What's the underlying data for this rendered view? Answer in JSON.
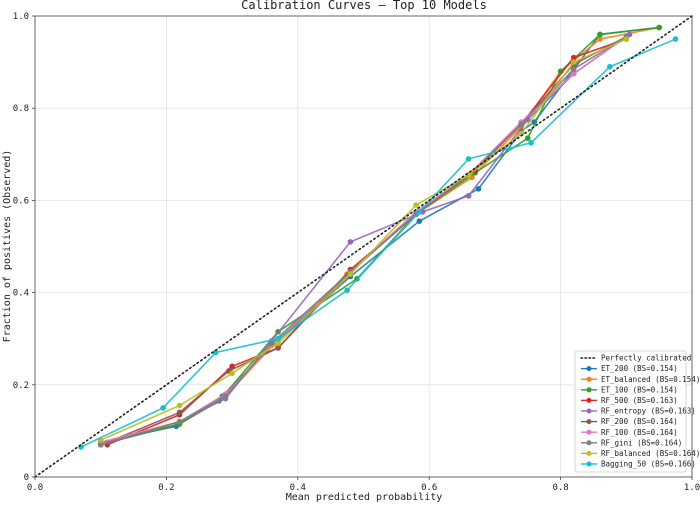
{
  "chart_data": {
    "type": "line",
    "title": "Calibration Curves — Top 10 Models",
    "xlabel": "Mean predicted probability",
    "ylabel": "Fraction of positives (Observed)",
    "xlim": [
      0,
      1
    ],
    "ylim": [
      0,
      1
    ],
    "xticks": [
      "0.0",
      "0.2",
      "0.4",
      "0.6",
      "0.8",
      "1.0"
    ],
    "yticks": [
      "0",
      "0.2",
      "0.4",
      "0.6",
      "0.8",
      "1.0"
    ],
    "grid": true,
    "legend_position": "bottom-right",
    "reference": {
      "name": "Perfectly calibrated",
      "x": [
        0,
        1
      ],
      "y": [
        0,
        1
      ],
      "color": "#222222"
    },
    "series": [
      {
        "name": "ET_200 (BS=0.154)",
        "color": "#1f77b4",
        "x": [
          0.1,
          0.215,
          0.285,
          0.365,
          0.48,
          0.585,
          0.675,
          0.74,
          0.76,
          0.86,
          0.95
        ],
        "y": [
          0.075,
          0.11,
          0.175,
          0.29,
          0.435,
          0.555,
          0.625,
          0.75,
          0.77,
          0.96,
          0.975
        ]
      },
      {
        "name": "ET_balanced (BS=0.154)",
        "color": "#ff7f0e",
        "x": [
          0.1,
          0.22,
          0.29,
          0.365,
          0.475,
          0.58,
          0.665,
          0.74,
          0.8,
          0.86,
          0.95
        ],
        "y": [
          0.075,
          0.115,
          0.175,
          0.29,
          0.44,
          0.57,
          0.65,
          0.76,
          0.88,
          0.95,
          0.975
        ]
      },
      {
        "name": "ET_100 (BS=0.154)",
        "color": "#2ca02c",
        "x": [
          0.1,
          0.22,
          0.28,
          0.37,
          0.49,
          0.58,
          0.67,
          0.75,
          0.8,
          0.86,
          0.95
        ],
        "y": [
          0.07,
          0.115,
          0.165,
          0.315,
          0.43,
          0.57,
          0.66,
          0.735,
          0.88,
          0.96,
          0.975
        ]
      },
      {
        "name": "RF_500 (BS=0.163)",
        "color": "#d62728",
        "x": [
          0.11,
          0.22,
          0.3,
          0.37,
          0.48,
          0.58,
          0.67,
          0.74,
          0.82,
          0.9
        ],
        "y": [
          0.07,
          0.135,
          0.24,
          0.28,
          0.45,
          0.57,
          0.665,
          0.765,
          0.91,
          0.95
        ]
      },
      {
        "name": "RF_entropy (BS=0.163)",
        "color": "#9467bd",
        "x": [
          0.1,
          0.22,
          0.29,
          0.36,
          0.48,
          0.59,
          0.66,
          0.75,
          0.82,
          0.905
        ],
        "y": [
          0.07,
          0.12,
          0.17,
          0.295,
          0.51,
          0.575,
          0.61,
          0.775,
          0.875,
          0.96
        ]
      },
      {
        "name": "RF_200 (BS=0.164)",
        "color": "#8c564b",
        "x": [
          0.11,
          0.22,
          0.295,
          0.37,
          0.48,
          0.58,
          0.66,
          0.74,
          0.82,
          0.9
        ],
        "y": [
          0.075,
          0.14,
          0.23,
          0.28,
          0.445,
          0.57,
          0.655,
          0.765,
          0.895,
          0.955
        ]
      },
      {
        "name": "RF_100 (BS=0.164)",
        "color": "#e377c2",
        "x": [
          0.1,
          0.22,
          0.29,
          0.36,
          0.48,
          0.58,
          0.66,
          0.74,
          0.82,
          0.9
        ],
        "y": [
          0.075,
          0.12,
          0.18,
          0.285,
          0.445,
          0.575,
          0.655,
          0.77,
          0.875,
          0.955
        ]
      },
      {
        "name": "RF_gini (BS=0.164)",
        "color": "#7f7f7f",
        "x": [
          0.1,
          0.22,
          0.29,
          0.36,
          0.48,
          0.58,
          0.66,
          0.74,
          0.82,
          0.9
        ],
        "y": [
          0.07,
          0.12,
          0.175,
          0.29,
          0.445,
          0.57,
          0.655,
          0.765,
          0.885,
          0.955
        ]
      },
      {
        "name": "RF_balanced (BS=0.164)",
        "color": "#bcbd22",
        "x": [
          0.1,
          0.22,
          0.3,
          0.37,
          0.48,
          0.58,
          0.66,
          0.74,
          0.82,
          0.9
        ],
        "y": [
          0.08,
          0.155,
          0.225,
          0.29,
          0.44,
          0.59,
          0.655,
          0.745,
          0.9,
          0.95
        ]
      },
      {
        "name": "Bagging_50 (BS=0.166)",
        "color": "#17becf",
        "x": [
          0.07,
          0.195,
          0.275,
          0.37,
          0.475,
          0.585,
          0.66,
          0.755,
          0.875,
          0.975
        ],
        "y": [
          0.065,
          0.15,
          0.27,
          0.3,
          0.405,
          0.575,
          0.69,
          0.725,
          0.89,
          0.95
        ]
      }
    ]
  }
}
